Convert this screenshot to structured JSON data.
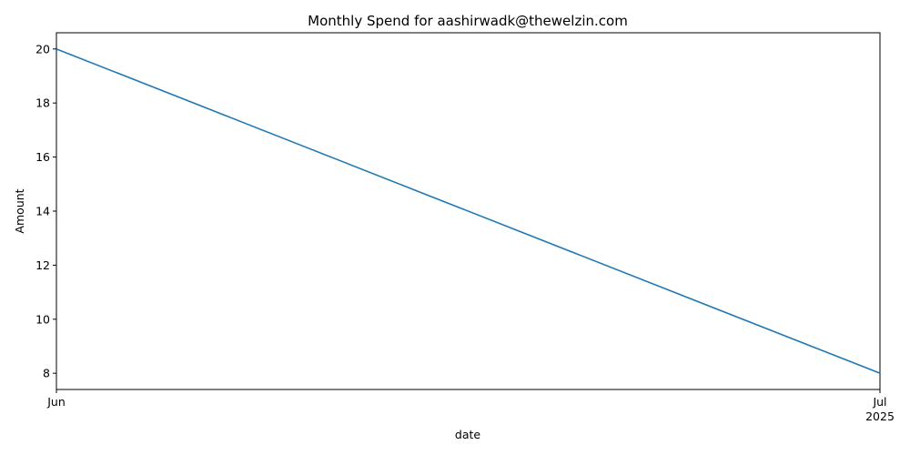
{
  "chart_data": {
    "type": "line",
    "title": "Monthly Spend for aashirwadk@thewelzin.com",
    "xlabel": "date",
    "ylabel": "Amount",
    "x": [
      "2025-06",
      "2025-07"
    ],
    "x_tick_labels": [
      "Jun",
      "Jul"
    ],
    "x_year_label": "2025",
    "series": [
      {
        "name": "Amount",
        "color": "#1f77b4",
        "values": [
          20,
          8
        ]
      }
    ],
    "ylim": [
      7.4,
      20.6
    ],
    "y_ticks": [
      8,
      10,
      12,
      14,
      16,
      18,
      20
    ],
    "grid": false,
    "legend": "none"
  }
}
